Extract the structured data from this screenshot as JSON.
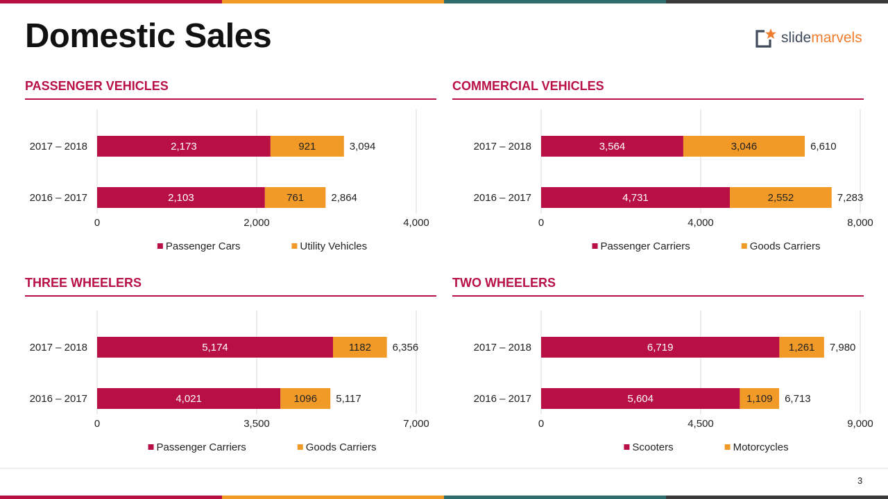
{
  "page": {
    "title": "Domestic Sales",
    "logo_text": "slidemarvels",
    "page_number": "3",
    "colors": {
      "primary": "#B80F45",
      "secondary": "#F29A28",
      "teal": "#2E6F6E",
      "dark": "#3A3A3A",
      "grid": "#D9D9D9",
      "logo_text": "#F07D2E",
      "logo_icon": "#3F4A5A"
    },
    "logo_icon": "frame-star-icon"
  },
  "chart_data": [
    {
      "type": "bar",
      "orientation": "horizontal",
      "stacked": true,
      "title": "PASSENGER VEHICLES",
      "categories": [
        "2017 – 2018",
        "2016 – 2017"
      ],
      "series": [
        {
          "name": "Passenger Cars",
          "values": [
            2173,
            2103
          ],
          "labels": [
            "2,173",
            "2,103"
          ],
          "color": "#B80F45"
        },
        {
          "name": "Utility Vehicles",
          "values": [
            921,
            761
          ],
          "labels": [
            "921",
            "761"
          ],
          "color": "#F29A28"
        }
      ],
      "totals": [
        "3,094",
        "2,864"
      ],
      "xlim": [
        0,
        4000
      ],
      "xticks": [
        "0",
        "2,000",
        "4,000"
      ],
      "legend": "bottom",
      "grid": true
    },
    {
      "type": "bar",
      "orientation": "horizontal",
      "stacked": true,
      "title": "COMMERCIAL VEHICLES",
      "categories": [
        "2017 – 2018",
        "2016 – 2017"
      ],
      "series": [
        {
          "name": "Passenger Carriers",
          "values": [
            3564,
            4731
          ],
          "labels": [
            "3,564",
            "4,731"
          ],
          "color": "#B80F45"
        },
        {
          "name": "Goods Carriers",
          "values": [
            3046,
            2552
          ],
          "labels": [
            "3,046",
            "2,552"
          ],
          "color": "#F29A28"
        }
      ],
      "totals": [
        "6,610",
        "7,283"
      ],
      "xlim": [
        0,
        8000
      ],
      "xticks": [
        "0",
        "4,000",
        "8,000"
      ],
      "legend": "bottom",
      "grid": true
    },
    {
      "type": "bar",
      "orientation": "horizontal",
      "stacked": true,
      "title": "THREE WHEELERS",
      "categories": [
        "2017 – 2018",
        "2016 – 2017"
      ],
      "series": [
        {
          "name": "Passenger Carriers",
          "values": [
            5174,
            4021
          ],
          "labels": [
            "5,174",
            "4,021"
          ],
          "color": "#B80F45"
        },
        {
          "name": "Goods Carriers",
          "values": [
            1182,
            1096
          ],
          "labels": [
            "1182",
            "1096"
          ],
          "color": "#F29A28"
        }
      ],
      "totals": [
        "6,356",
        "5,117"
      ],
      "xlim": [
        0,
        7000
      ],
      "xticks": [
        "0",
        "3,500",
        "7,000"
      ],
      "legend": "bottom",
      "grid": true
    },
    {
      "type": "bar",
      "orientation": "horizontal",
      "stacked": true,
      "title": "TWO WHEELERS",
      "categories": [
        "2017 – 2018",
        "2016 – 2017"
      ],
      "series": [
        {
          "name": "Scooters",
          "values": [
            6719,
            5604
          ],
          "labels": [
            "6,719",
            "5,604"
          ],
          "color": "#B80F45"
        },
        {
          "name": "Motorcycles",
          "values": [
            1261,
            1109
          ],
          "labels": [
            "1,261",
            "1,109"
          ],
          "color": "#F29A28"
        }
      ],
      "totals": [
        "7,980",
        "6,713"
      ],
      "xlim": [
        0,
        9000
      ],
      "xticks": [
        "0",
        "4,500",
        "9,000"
      ],
      "legend": "bottom",
      "grid": true
    }
  ]
}
